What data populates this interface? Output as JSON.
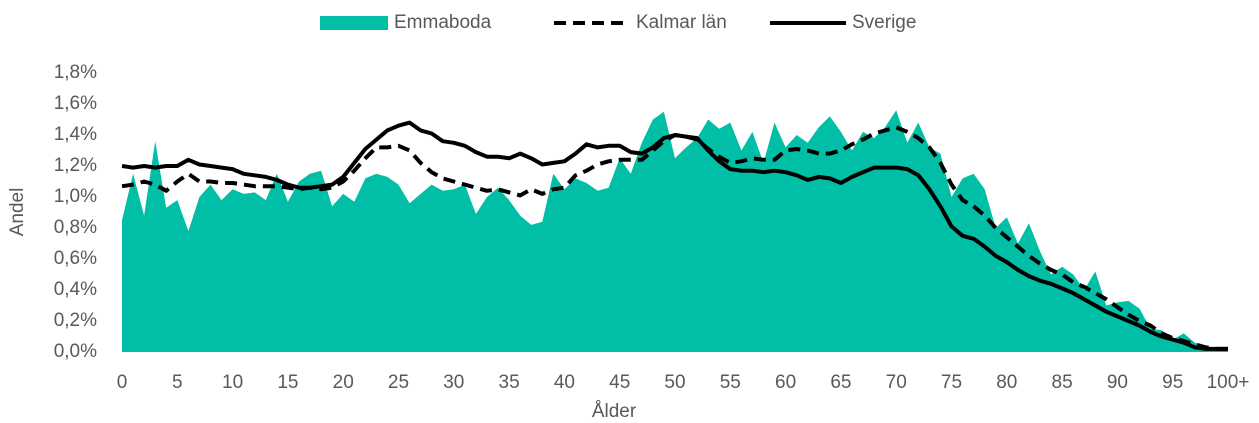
{
  "chart_data": {
    "type": "line",
    "x_label": "Ålder",
    "y_label": "Andel",
    "categories": [
      "0",
      null,
      null,
      null,
      null,
      "5",
      null,
      null,
      null,
      null,
      "10",
      null,
      null,
      null,
      null,
      "15",
      null,
      null,
      null,
      null,
      "20",
      null,
      null,
      null,
      null,
      "25",
      null,
      null,
      null,
      null,
      "30",
      null,
      null,
      null,
      null,
      "35",
      null,
      null,
      null,
      null,
      "40",
      null,
      null,
      null,
      null,
      "45",
      null,
      null,
      null,
      null,
      "50",
      null,
      null,
      null,
      null,
      "55",
      null,
      null,
      null,
      null,
      "60",
      null,
      null,
      null,
      null,
      "65",
      null,
      null,
      null,
      null,
      "70",
      null,
      null,
      null,
      null,
      "75",
      null,
      null,
      null,
      null,
      "80",
      null,
      null,
      null,
      null,
      "85",
      null,
      null,
      null,
      null,
      "90",
      null,
      null,
      null,
      null,
      "95",
      null,
      null,
      null,
      null,
      "100+"
    ],
    "series": [
      {
        "name": "Emmaboda",
        "color": "#00bfa6",
        "type": "area",
        "line_style": "solid",
        "values": [
          0.85,
          1.15,
          0.88,
          1.36,
          0.93,
          0.98,
          0.78,
          1.0,
          1.08,
          0.98,
          1.05,
          1.02,
          1.03,
          0.98,
          1.15,
          0.97,
          1.1,
          1.15,
          1.17,
          0.94,
          1.02,
          0.97,
          1.12,
          1.15,
          1.13,
          1.08,
          0.96,
          1.02,
          1.08,
          1.04,
          1.05,
          1.08,
          0.89,
          1.0,
          1.06,
          0.98,
          0.88,
          0.82,
          0.84,
          1.15,
          1.05,
          1.12,
          1.09,
          1.04,
          1.06,
          1.25,
          1.15,
          1.35,
          1.5,
          1.55,
          1.25,
          1.32,
          1.38,
          1.5,
          1.44,
          1.48,
          1.3,
          1.42,
          1.22,
          1.48,
          1.32,
          1.4,
          1.35,
          1.45,
          1.52,
          1.42,
          1.3,
          1.42,
          1.38,
          1.45,
          1.56,
          1.35,
          1.48,
          1.32,
          1.28,
          1.0,
          1.12,
          1.15,
          1.05,
          0.8,
          0.87,
          0.7,
          0.83,
          0.65,
          0.5,
          0.55,
          0.5,
          0.4,
          0.52,
          0.3,
          0.32,
          0.33,
          0.28,
          0.15,
          0.14,
          0.08,
          0.12,
          0.06,
          0.04,
          0.02,
          0.02
        ]
      },
      {
        "name": "Kalmar län",
        "color": "#000000",
        "type": "line",
        "line_style": "dashed",
        "values": [
          1.07,
          1.08,
          1.1,
          1.08,
          1.04,
          1.1,
          1.15,
          1.1,
          1.1,
          1.09,
          1.09,
          1.08,
          1.07,
          1.07,
          1.07,
          1.06,
          1.05,
          1.06,
          1.05,
          1.06,
          1.1,
          1.17,
          1.25,
          1.32,
          1.32,
          1.33,
          1.3,
          1.22,
          1.16,
          1.12,
          1.1,
          1.08,
          1.06,
          1.04,
          1.05,
          1.03,
          1.01,
          1.05,
          1.02,
          1.05,
          1.06,
          1.14,
          1.17,
          1.21,
          1.23,
          1.24,
          1.24,
          1.24,
          1.3,
          1.36,
          1.4,
          1.39,
          1.37,
          1.31,
          1.26,
          1.22,
          1.23,
          1.25,
          1.24,
          1.24,
          1.3,
          1.31,
          1.3,
          1.28,
          1.28,
          1.3,
          1.34,
          1.37,
          1.41,
          1.43,
          1.45,
          1.42,
          1.38,
          1.32,
          1.22,
          1.08,
          0.98,
          0.94,
          0.88,
          0.8,
          0.74,
          0.68,
          0.62,
          0.57,
          0.53,
          0.5,
          0.45,
          0.42,
          0.38,
          0.34,
          0.29,
          0.24,
          0.2,
          0.17,
          0.12,
          0.09,
          0.07,
          0.05,
          0.03,
          0.02,
          0.02
        ]
      },
      {
        "name": "Sverige",
        "color": "#000000",
        "type": "line",
        "line_style": "solid",
        "values": [
          1.2,
          1.19,
          1.2,
          1.19,
          1.2,
          1.2,
          1.24,
          1.21,
          1.2,
          1.19,
          1.18,
          1.15,
          1.14,
          1.13,
          1.11,
          1.08,
          1.06,
          1.06,
          1.07,
          1.08,
          1.13,
          1.22,
          1.31,
          1.37,
          1.43,
          1.46,
          1.48,
          1.43,
          1.41,
          1.36,
          1.35,
          1.33,
          1.29,
          1.26,
          1.26,
          1.25,
          1.28,
          1.25,
          1.21,
          1.22,
          1.23,
          1.28,
          1.34,
          1.32,
          1.33,
          1.33,
          1.29,
          1.28,
          1.32,
          1.38,
          1.4,
          1.39,
          1.38,
          1.3,
          1.23,
          1.18,
          1.17,
          1.17,
          1.16,
          1.17,
          1.16,
          1.14,
          1.11,
          1.13,
          1.12,
          1.09,
          1.13,
          1.16,
          1.19,
          1.19,
          1.19,
          1.18,
          1.14,
          1.05,
          0.94,
          0.81,
          0.75,
          0.73,
          0.68,
          0.62,
          0.58,
          0.53,
          0.49,
          0.46,
          0.44,
          0.41,
          0.38,
          0.34,
          0.3,
          0.26,
          0.23,
          0.2,
          0.17,
          0.13,
          0.1,
          0.08,
          0.06,
          0.03,
          0.02,
          0.02,
          0.02
        ]
      }
    ],
    "ylim": [
      0,
      1.8
    ],
    "yticks": [
      {
        "value": 0,
        "label": "0,0%"
      },
      {
        "value": 0.2,
        "label": "0,2%"
      },
      {
        "value": 0.4,
        "label": "0,4%"
      },
      {
        "value": 0.6,
        "label": "0,6%"
      },
      {
        "value": 0.8,
        "label": "0,8%"
      },
      {
        "value": 1.0,
        "label": "1,0%"
      },
      {
        "value": 1.2,
        "label": "1,2%"
      },
      {
        "value": 1.4,
        "label": "1,4%"
      },
      {
        "value": 1.6,
        "label": "1,6%"
      },
      {
        "value": 1.8,
        "label": "1,8%"
      }
    ],
    "grid": false,
    "legend": "top"
  }
}
